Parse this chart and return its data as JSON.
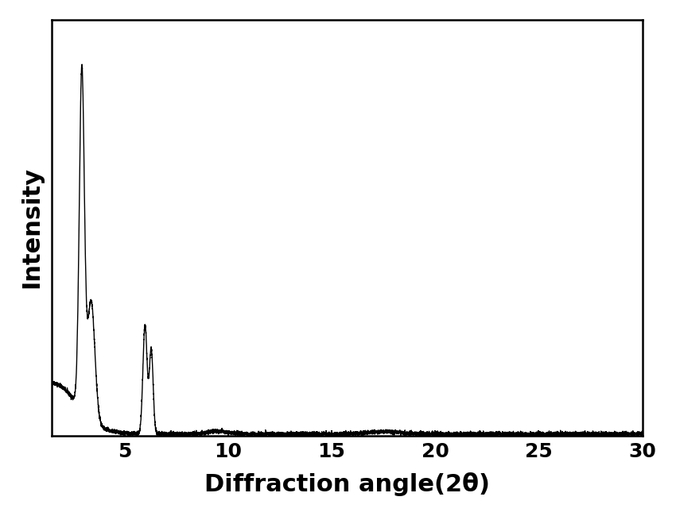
{
  "xlabel": "Diffraction angle(2θ)",
  "ylabel": "Intensity",
  "xlim": [
    1.5,
    30
  ],
  "ylim_min": 0,
  "xticks": [
    5,
    10,
    15,
    20,
    25,
    30
  ],
  "line_color": "#000000",
  "line_width": 1.0,
  "background_color": "#ffffff",
  "xlabel_fontsize": 22,
  "ylabel_fontsize": 22,
  "xlabel_fontweight": "bold",
  "ylabel_fontweight": "bold",
  "tick_fontsize": 18,
  "tick_fontweight": "bold",
  "noise_level": 0.003,
  "baseline": 0.005,
  "figsize": [
    8.5,
    6.5
  ],
  "dpi": 100
}
